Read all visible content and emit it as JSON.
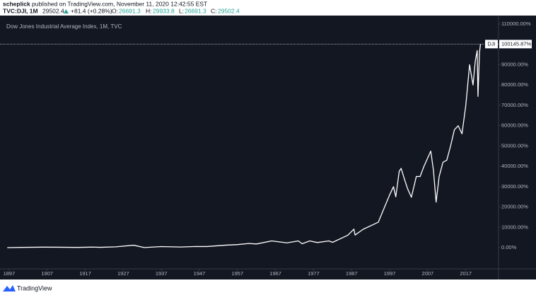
{
  "header": {
    "author": "scheplick",
    "published": "published on TradingView.com, November 11, 2020 12:42:55 EST",
    "symbol": "TVC:DJI, 1M",
    "price": "29502.4",
    "change": "+81.4 (+0.28%)",
    "open_label": "O:",
    "open": "26691.3",
    "high_label": "H:",
    "high": "29933.8",
    "low_label": "L:",
    "low": "26691.3",
    "close_label": "C:",
    "close": "29502.4"
  },
  "chart_data": {
    "type": "line",
    "title": "Dow Jones Industrial Average Index, 1M, TVC",
    "series": [
      {
        "name": "DJI",
        "color": "#ffffff",
        "x": [
          1896.5,
          1900,
          1906,
          1910,
          1915,
          1919,
          1921,
          1925,
          1929.7,
          1932.5,
          1937,
          1942,
          1946,
          1949,
          1954,
          1957,
          1960,
          1962,
          1966,
          1970,
          1973,
          1974,
          1976,
          1978,
          1981,
          1982,
          1986,
          1987.6,
          1987.9,
          1990,
          1994,
          1995,
          1997,
          1998,
          1998.6,
          1999.5,
          2000,
          2001,
          2001.7,
          2002.7,
          2004,
          2005,
          2006,
          2007.8,
          2008.5,
          2009.2,
          2010,
          2011,
          2012,
          2013,
          2014,
          2015,
          2016,
          2017,
          2018,
          2018.9,
          2019.5,
          2020,
          2020.2,
          2020.6,
          2020.86
        ],
        "values": [
          0,
          100,
          240,
          200,
          100,
          270,
          150,
          400,
          1195,
          40,
          510,
          310,
          560,
          540,
          1230,
          1500,
          2050,
          1800,
          3300,
          2350,
          3300,
          1900,
          3300,
          2500,
          3300,
          2600,
          6100,
          9100,
          6200,
          9000,
          12500,
          17000,
          26000,
          30000,
          25000,
          37500,
          39000,
          33000,
          29000,
          24800,
          35000,
          35000,
          40000,
          47500,
          38000,
          22400,
          35000,
          42000,
          43000,
          50000,
          58000,
          60000,
          56000,
          70000,
          90000,
          80000,
          92000,
          97000,
          74400,
          96000,
          100145.87
        ]
      }
    ],
    "last_value": 100145.87,
    "last_value_label": "100145.87%",
    "xlim": [
      1894.6,
      2025.6
    ],
    "xticks": [
      1897,
      1907,
      1917,
      1927,
      1937,
      1947,
      1957,
      1967,
      1977,
      1987,
      1997,
      2007,
      2017
    ],
    "ylim": [
      -9750,
      114180
    ],
    "yticks": [
      {
        "value": 0,
        "label": "0.00%"
      },
      {
        "value": 10000,
        "label": "10000.00%"
      },
      {
        "value": 20000,
        "label": "20000.00%"
      },
      {
        "value": 30000,
        "label": "30000.00%"
      },
      {
        "value": 40000,
        "label": "40000.00%"
      },
      {
        "value": 50000,
        "label": "50000.00%"
      },
      {
        "value": 60000,
        "label": "60000.00%"
      },
      {
        "value": 70000,
        "label": "70000.00%"
      },
      {
        "value": 80000,
        "label": "80000.00%"
      },
      {
        "value": 90000,
        "label": "90000.00%"
      },
      {
        "value": 100000,
        "label": "100000.00%"
      },
      {
        "value": 110000,
        "label": "110000.00%"
      }
    ],
    "grid": false
  },
  "footer": {
    "brand": "TradingView"
  }
}
